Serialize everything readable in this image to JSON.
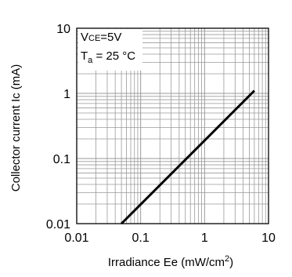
{
  "chart_data": {
    "type": "line",
    "title": "",
    "xlabel": "Irradiance Ee (mW/cm",
    "xlabel_sup": "2",
    "xlabel_end": ")",
    "ylabel": "Collector current Ic (mA)",
    "x_scale": "log",
    "y_scale": "log",
    "xlim": [
      0.01,
      10
    ],
    "ylim": [
      0.01,
      10
    ],
    "x_ticks": [
      0.01,
      0.1,
      1,
      10
    ],
    "y_ticks": [
      0.01,
      0.1,
      1,
      10
    ],
    "x_tick_labels": [
      "0.01",
      "0.1",
      "1",
      "10"
    ],
    "y_tick_labels": [
      "0.01",
      "0.1",
      "1",
      "10"
    ],
    "grid": true,
    "series": [
      {
        "x": [
          0.05,
          6
        ],
        "y": [
          0.01,
          1.1
        ]
      }
    ],
    "annotations": {
      "line1_main": "V",
      "line1_sub": "CE",
      "line1_end": "=5V",
      "line2_main": "T",
      "line2_sub": "a",
      "line2_end": " = 25 °C"
    }
  }
}
